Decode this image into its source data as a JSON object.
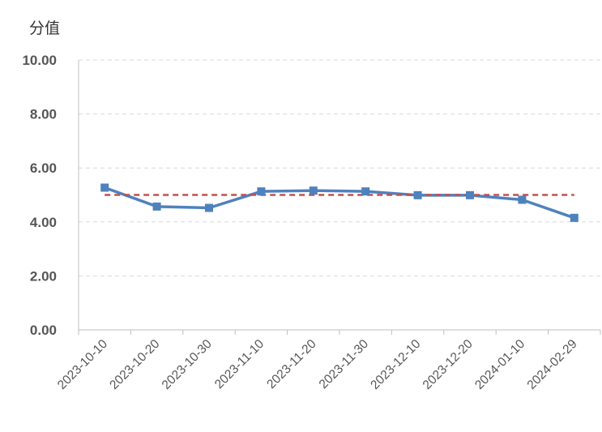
{
  "chart_data": {
    "type": "line",
    "ylabel": "分值",
    "ylim": [
      0,
      10
    ],
    "yticks": [
      "0.00",
      "2.00",
      "4.00",
      "6.00",
      "8.00",
      "10.00"
    ],
    "categories": [
      "2023-10-10",
      "2023-10-20",
      "2023-10-30",
      "2023-11-10",
      "2023-11-20",
      "2023-11-30",
      "2023-12-10",
      "2023-12-20",
      "2024-01-10",
      "2024-02-29"
    ],
    "series": [
      {
        "values": [
          5.27,
          4.57,
          4.52,
          5.13,
          5.16,
          5.13,
          4.99,
          4.99,
          4.82,
          4.15
        ],
        "color": "#4F81BD",
        "marker": "square"
      },
      {
        "values": [
          5.0,
          5.0,
          5.0,
          5.0,
          5.0,
          5.0,
          5.0,
          5.0,
          5.0,
          5.0
        ],
        "color": "#C0504D",
        "style": "dashed"
      }
    ],
    "grid": true,
    "legend": "none"
  }
}
